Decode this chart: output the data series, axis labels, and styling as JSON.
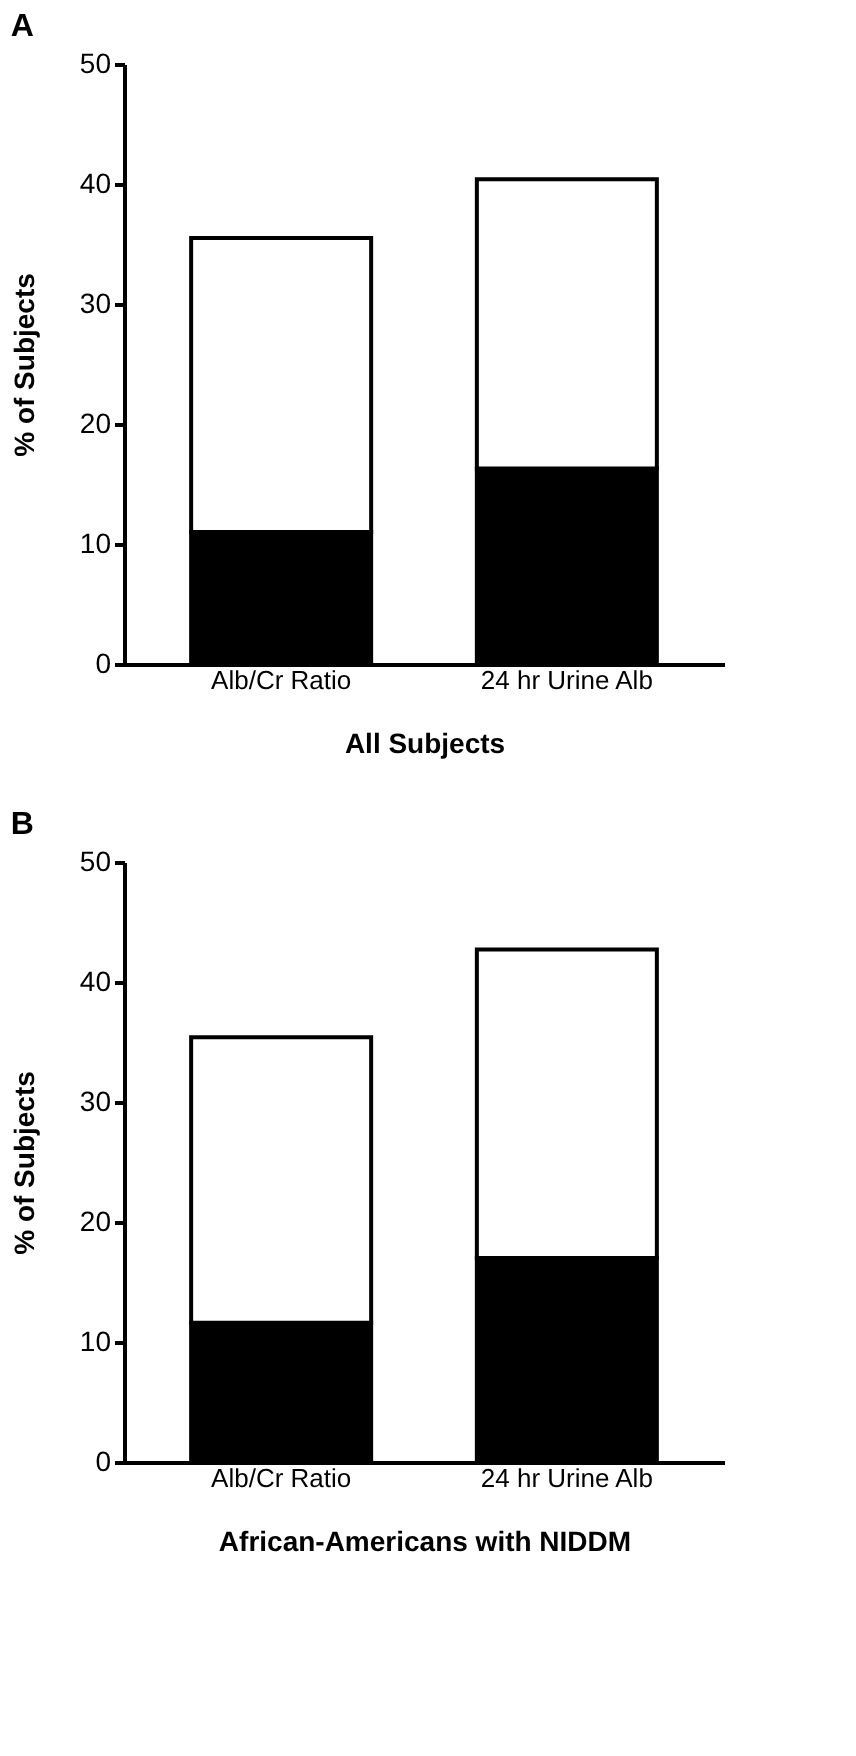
{
  "chart_data": [
    {
      "type": "bar",
      "title": "A",
      "xlabel": "All Subjects",
      "ylabel": "% of Subjects",
      "categories": [
        "Alb/Cr  Ratio",
        "24  hr  Urine  Alb"
      ],
      "stacked": true,
      "series": [
        {
          "color": "#000000",
          "values": [
            11.0,
            16.3
          ]
        },
        {
          "color": "#ffffff",
          "values": [
            24.5,
            24.1
          ]
        }
      ],
      "ylim": [
        0,
        50
      ],
      "yticks": [
        0,
        10,
        20,
        30,
        40,
        50
      ],
      "grid": false,
      "legend": false
    },
    {
      "type": "bar",
      "title": "B",
      "xlabel": "African-Americans  with  NIDDM",
      "ylabel": "% of Subjects",
      "categories": [
        "Alb/Cr  Ratio",
        "24  hr  Urine  Alb"
      ],
      "stacked": true,
      "series": [
        {
          "color": "#000000",
          "values": [
            11.6,
            17.0
          ]
        },
        {
          "color": "#ffffff",
          "values": [
            23.8,
            25.7
          ]
        }
      ],
      "ylim": [
        0,
        50
      ],
      "yticks": [
        0,
        10,
        20,
        30,
        40,
        50
      ],
      "grid": false,
      "legend": false
    }
  ]
}
